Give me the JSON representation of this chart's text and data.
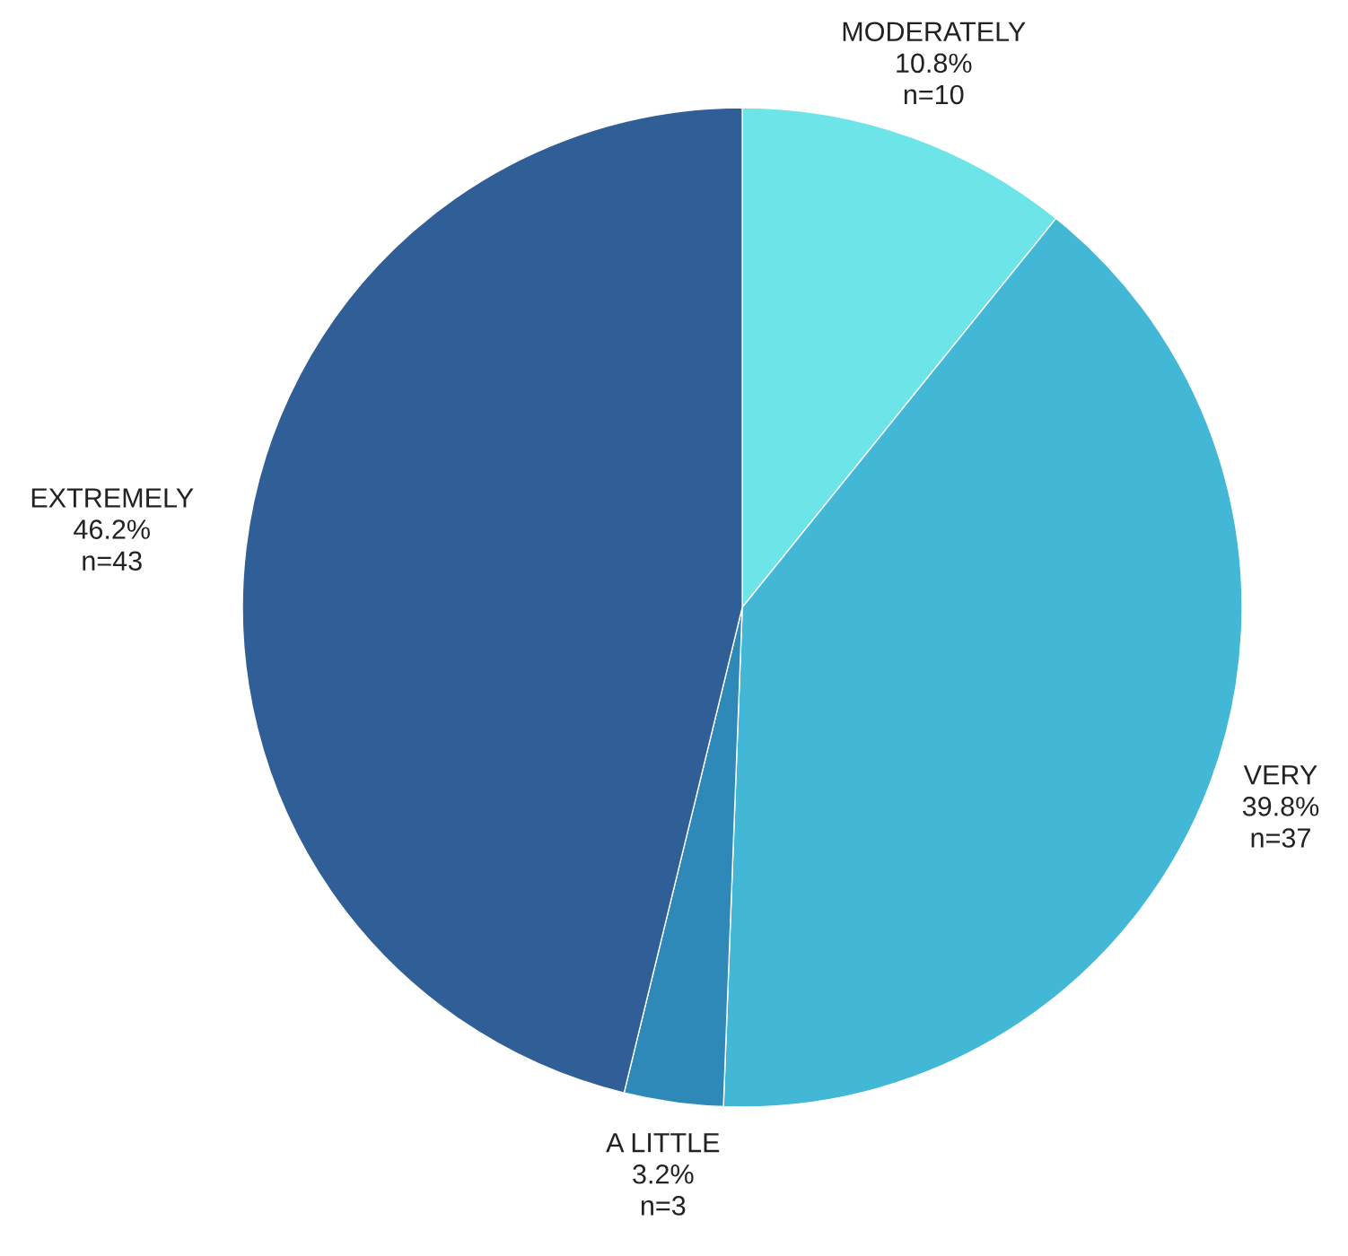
{
  "chart_data": {
    "type": "pie",
    "categories": [
      "MODERATELY",
      "VERY",
      "A LITTLE",
      "EXTREMELY"
    ],
    "values": [
      10.8,
      39.8,
      3.2,
      46.2
    ],
    "colors": [
      "#6ce4e8",
      "#43b7d6",
      "#2e89b8",
      "#2f5f96"
    ],
    "value_labels": [
      "10.8%\nn=10",
      "39.8%\nn=37",
      "3.2%\nn=3",
      "46.2%\nn=43"
    ],
    "legend": false
  }
}
